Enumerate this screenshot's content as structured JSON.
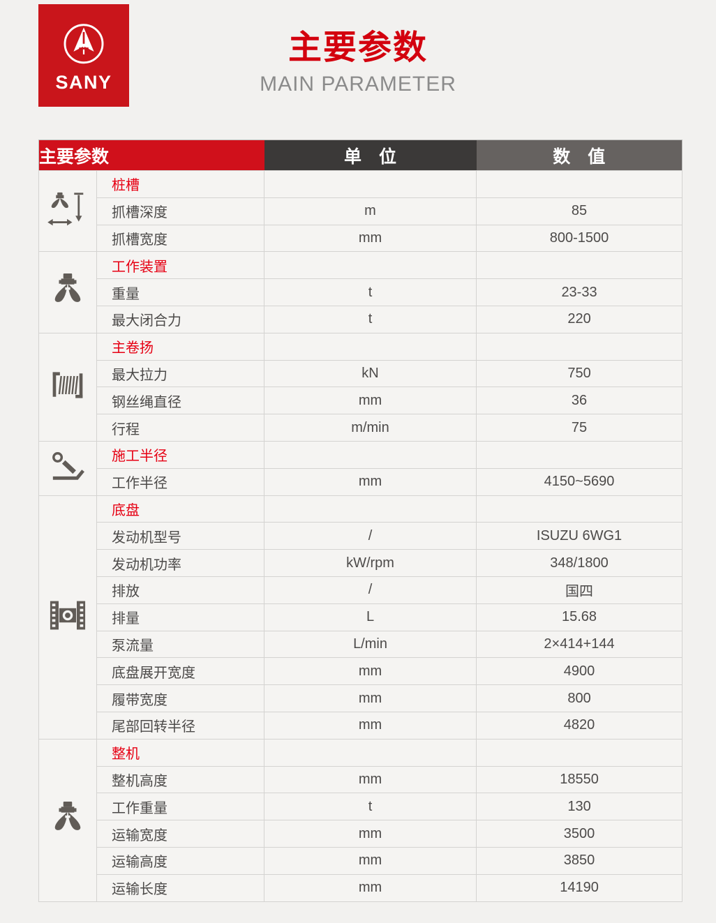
{
  "brand": {
    "logo_text": "SANY"
  },
  "header": {
    "title": "主要参数",
    "subtitle": "MAIN PARAMETER"
  },
  "colors": {
    "brand_red": "#c9151b",
    "title_red": "#d3010e",
    "section_red": "#e60013",
    "header_param_bg": "#d0101b",
    "header_unit_bg": "#3b3938",
    "header_value_bg": "#666260",
    "page_bg": "#f2f1ef",
    "cell_bg": "#f5f4f2",
    "icon_gray": "#615c57"
  },
  "table": {
    "columns": {
      "param": "主要参数",
      "unit": "单　位",
      "value": "数　值"
    },
    "sections": [
      {
        "icon": "grab-depth-width-icon",
        "title": "桩槽",
        "rows": [
          {
            "name": "抓槽深度",
            "unit": "m",
            "value": "85"
          },
          {
            "name": "抓槽宽度",
            "unit": "mm",
            "value": "800-1500"
          }
        ]
      },
      {
        "icon": "grab-tool-icon",
        "title": "工作装置",
        "rows": [
          {
            "name": "重量",
            "unit": "t",
            "value": "23-33"
          },
          {
            "name": "最大闭合力",
            "unit": "t",
            "value": "220"
          }
        ]
      },
      {
        "icon": "winch-icon",
        "title": "主卷扬",
        "rows": [
          {
            "name": "最大拉力",
            "unit": "kN",
            "value": "750"
          },
          {
            "name": "钢丝绳直径",
            "unit": "mm",
            "value": "36"
          },
          {
            "name": "行程",
            "unit": "m/min",
            "value": "75"
          }
        ]
      },
      {
        "icon": "working-radius-icon",
        "title": "施工半径",
        "rows": [
          {
            "name": "工作半径",
            "unit": "mm",
            "value": "4150~5690"
          }
        ]
      },
      {
        "icon": "crawler-track-icon",
        "title": "底盘",
        "rows": [
          {
            "name": "发动机型号",
            "unit": "/",
            "value": "ISUZU 6WG1"
          },
          {
            "name": "发动机功率",
            "unit": "kW/rpm",
            "value": "348/1800"
          },
          {
            "name": "排放",
            "unit": "/",
            "value": "国四"
          },
          {
            "name": "排量",
            "unit": "L",
            "value": "15.68"
          },
          {
            "name": "泵流量",
            "unit": "L/min",
            "value": "2×414+144"
          },
          {
            "name": "底盘展开宽度",
            "unit": "mm",
            "value": "4900"
          },
          {
            "name": "履带宽度",
            "unit": "mm",
            "value": "800"
          },
          {
            "name": "尾部回转半径",
            "unit": "mm",
            "value": "4820"
          }
        ]
      },
      {
        "icon": "grab-tool-icon",
        "title": "整机",
        "rows": [
          {
            "name": "整机高度",
            "unit": "mm",
            "value": "18550"
          },
          {
            "name": "工作重量",
            "unit": "t",
            "value": "130"
          },
          {
            "name": "运输宽度",
            "unit": "mm",
            "value": "3500"
          },
          {
            "name": "运输高度",
            "unit": "mm",
            "value": "3850"
          },
          {
            "name": "运输长度",
            "unit": "mm",
            "value": "14190"
          }
        ]
      }
    ]
  }
}
